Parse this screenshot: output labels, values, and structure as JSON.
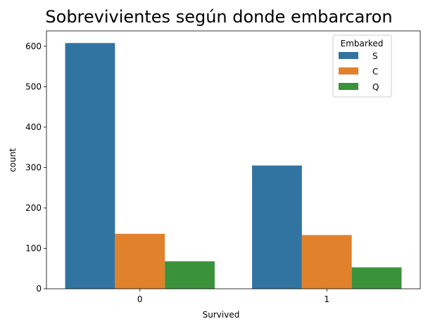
{
  "chart_data": {
    "type": "bar",
    "title": "Sobrevivientes según donde embarcaron",
    "xlabel": "Survived",
    "ylabel": "count",
    "categories": [
      "0",
      "1"
    ],
    "series": [
      {
        "name": "S",
        "color": "#3274a1",
        "values": [
          608,
          305
        ]
      },
      {
        "name": "C",
        "color": "#e1812c",
        "values": [
          136,
          133
        ]
      },
      {
        "name": "Q",
        "color": "#3a923a",
        "values": [
          68,
          53
        ]
      }
    ],
    "ylim": [
      0,
      638
    ],
    "yticks": [
      0,
      100,
      200,
      300,
      400,
      500,
      600
    ],
    "legend": {
      "title": "Embarked",
      "position": "top-right"
    },
    "grid": false
  }
}
